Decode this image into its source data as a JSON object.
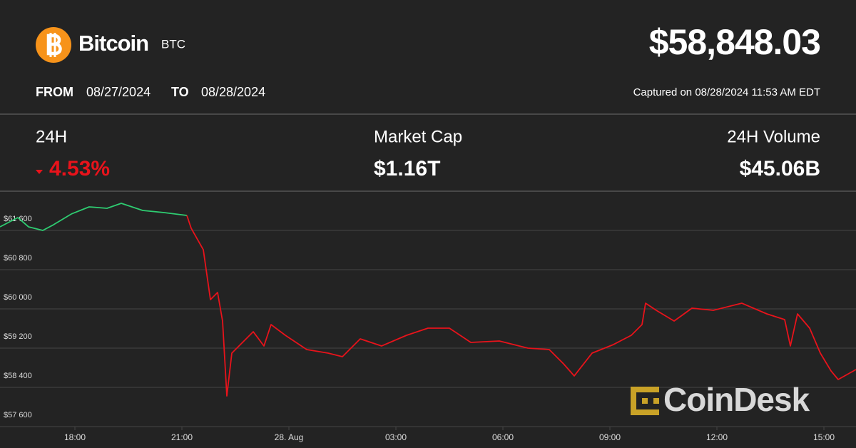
{
  "header": {
    "name": "Bitcoin",
    "symbol": "BTC",
    "price": "$58,848.03",
    "from_label": "FROM",
    "from": "08/27/2024",
    "to_label": "TO",
    "to": "08/28/2024",
    "captured": "Captured on 08/28/2024 11:53 AM EDT"
  },
  "stats": [
    {
      "label": "24H",
      "value": "4.53%"
    },
    {
      "label": "Market Cap",
      "value": "$1.16T"
    },
    {
      "label": "24H Volume",
      "value": "$45.06B"
    }
  ],
  "watermark": "CoinDesk",
  "chart_data": {
    "type": "line",
    "x": [
      15.9,
      16.4,
      16.7,
      17.1,
      17.4,
      17.9,
      18.4,
      18.9,
      19.3,
      19.9,
      20.5,
      21.14,
      21.26,
      21.6,
      21.8,
      22.0,
      22.14,
      22.26,
      22.4,
      22.7,
      23.0,
      23.3,
      23.5,
      23.9,
      24.5,
      25.1,
      25.5,
      26.0,
      26.6,
      27.3,
      27.9,
      28.5,
      29.1,
      29.9,
      30.7,
      31.3,
      31.7,
      32.0,
      32.5,
      33.1,
      33.6,
      33.9,
      34.0,
      34.3,
      34.8,
      35.3,
      35.9,
      36.7,
      37.4,
      37.9,
      38.06,
      38.26,
      38.6,
      38.9,
      39.2,
      39.4,
      39.9
    ],
    "series": [
      {
        "color": "#2ecc71",
        "values": [
          61673,
          61862,
          61673,
          61600,
          61716,
          61935,
          62080,
          62051,
          62153,
          62007,
          61964,
          61905,
          null,
          null,
          null,
          null,
          null,
          null,
          null,
          null,
          null,
          null,
          null,
          null,
          null,
          null,
          null,
          null,
          null,
          null,
          null,
          null,
          null,
          null,
          null,
          null,
          null,
          null,
          null,
          null,
          null,
          null,
          null,
          null,
          null,
          null,
          null,
          null,
          null,
          null,
          null,
          null,
          null,
          null,
          null,
          null,
          null
        ]
      },
      {
        "color": "#e8131b",
        "values": [
          null,
          null,
          null,
          null,
          null,
          null,
          null,
          null,
          null,
          null,
          null,
          61905,
          61644,
          61207,
          60189,
          60335,
          59753,
          58225,
          59098,
          59316,
          59535,
          59244,
          59680,
          59462,
          59171,
          59098,
          59025,
          59389,
          59244,
          59462,
          59607,
          59607,
          59316,
          59345,
          59200,
          59171,
          58880,
          58633,
          59098,
          59273,
          59462,
          59680,
          60116,
          59971,
          59753,
          60015,
          59971,
          60116,
          59898,
          59782,
          59244,
          59898,
          59607,
          59098,
          58735,
          58560,
          58764
        ]
      }
    ],
    "xlim": [
      15.9,
      39.9
    ],
    "xticks": [
      {
        "value": 18,
        "label": "18:00"
      },
      {
        "value": 21,
        "label": "21:00"
      },
      {
        "value": 24,
        "label": "28. Aug"
      },
      {
        "value": 27,
        "label": "03:00"
      },
      {
        "value": 30,
        "label": "06:00"
      },
      {
        "value": 33,
        "label": "09:00"
      },
      {
        "value": 36,
        "label": "12:00"
      },
      {
        "value": 39,
        "label": "15:00"
      }
    ],
    "ylim": [
      57600,
      62400
    ],
    "yticks": [
      {
        "value": 57600,
        "label": "$57 600"
      },
      {
        "value": 58400,
        "label": "$58 400"
      },
      {
        "value": 59200,
        "label": "$59 200"
      },
      {
        "value": 60000,
        "label": "$60 000"
      },
      {
        "value": 60800,
        "label": "$60 800"
      },
      {
        "value": 61600,
        "label": "$61 600"
      }
    ],
    "grid": true
  }
}
